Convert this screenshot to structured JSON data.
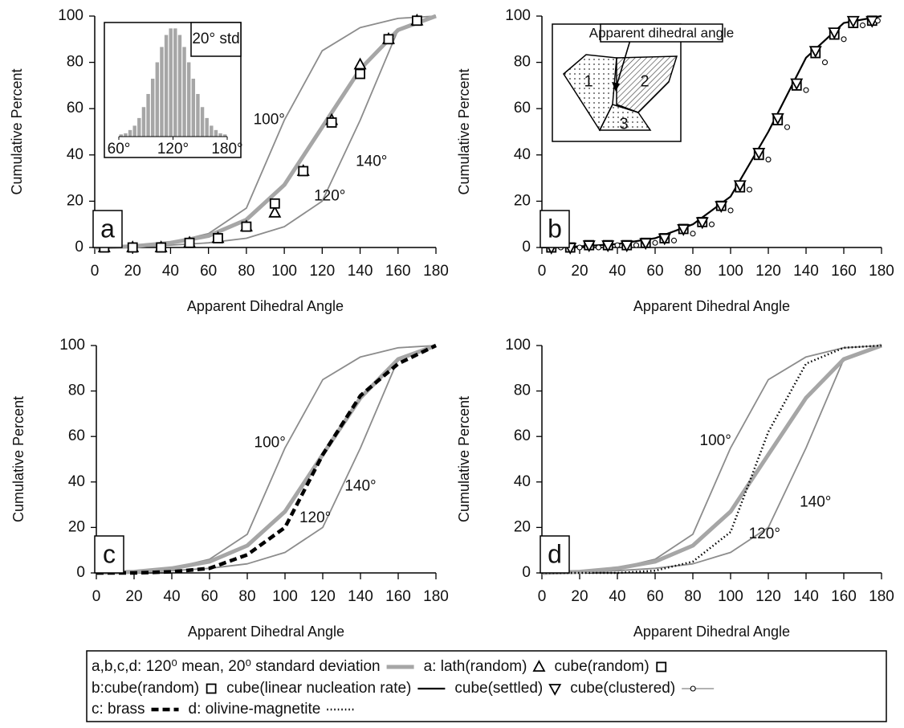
{
  "chart_data": [
    {
      "type": "line",
      "panel_label": "a",
      "xlabel": "Apparent Dihedral Angle",
      "ylabel": "Cumulative Percent",
      "xlim": [
        0,
        180
      ],
      "ylim": [
        0,
        100
      ],
      "xticks": [
        0,
        20,
        40,
        60,
        80,
        100,
        120,
        140,
        160,
        180
      ],
      "yticks": [
        0,
        20,
        40,
        60,
        80,
        100
      ],
      "series": [
        {
          "label": "100°",
          "color": "#8c8c8c",
          "line_style": "solid",
          "x": [
            0,
            20,
            40,
            60,
            80,
            100,
            120,
            140,
            160,
            180
          ],
          "values": [
            0,
            0.5,
            2,
            6,
            17,
            55,
            85,
            95,
            99,
            100
          ]
        },
        {
          "label": "140°",
          "color": "#8c8c8c",
          "line_style": "solid",
          "x": [
            0,
            20,
            40,
            60,
            80,
            100,
            120,
            140,
            160,
            180
          ],
          "values": [
            0,
            0.2,
            1,
            2,
            4,
            9,
            20,
            55,
            94,
            100
          ]
        },
        {
          "label": "120°",
          "name": "a,b,c,d: 120⁰ mean, 20⁰ standard  deviation",
          "color": "#a6a6a6",
          "line_style": "thick",
          "x": [
            0,
            20,
            40,
            60,
            80,
            100,
            120,
            140,
            160,
            180
          ],
          "values": [
            0,
            0.5,
            2,
            5,
            12,
            27,
            52,
            77,
            94,
            100
          ]
        },
        {
          "name": "a: lath(random)",
          "color": "#000000",
          "marker": "triangle",
          "x": [
            5,
            20,
            35,
            50,
            65,
            80,
            95,
            110,
            125,
            140,
            155,
            170
          ],
          "values": [
            0,
            0,
            0,
            2,
            4,
            9,
            15,
            33,
            55,
            79,
            90,
            98
          ]
        },
        {
          "name": "cube(random)",
          "color": "#000000",
          "marker": "square",
          "x": [
            5,
            20,
            35,
            50,
            65,
            80,
            95,
            110,
            125,
            140,
            155,
            170
          ],
          "values": [
            0,
            0,
            0,
            2,
            4,
            9,
            19,
            33,
            54,
            75,
            90,
            98
          ]
        }
      ],
      "inset": {
        "type": "histogram",
        "label": "20° std",
        "bins": [
          60,
          65,
          70,
          75,
          80,
          85,
          90,
          95,
          100,
          105,
          110,
          115,
          120,
          125,
          130,
          135,
          140,
          145,
          150,
          155,
          160,
          165,
          170,
          175,
          180
        ],
        "values": [
          2,
          3,
          6,
          10,
          17,
          27,
          39,
          53,
          68,
          82,
          93,
          99,
          99,
          93,
          82,
          68,
          53,
          39,
          27,
          17,
          10,
          6,
          3,
          2
        ],
        "color": "#a6a6a6",
        "xlim": [
          60,
          180
        ],
        "ylim": [
          0,
          100
        ],
        "xticks": [
          {
            "value": 60,
            "label": "60°"
          },
          {
            "value": 120,
            "label": "120°"
          },
          {
            "value": 180,
            "label": "180°"
          }
        ]
      }
    },
    {
      "type": "line",
      "panel_label": "b",
      "xlabel": "Apparent Dihedral Angle",
      "ylabel": "Cumulative Percent",
      "xlim": [
        0,
        180
      ],
      "ylim": [
        0,
        100
      ],
      "xticks": [
        0,
        20,
        40,
        60,
        80,
        100,
        120,
        140,
        160,
        180
      ],
      "yticks": [
        0,
        20,
        40,
        60,
        80,
        100
      ],
      "series": [
        {
          "name": "cube(linear nucleation rate)",
          "color": "#000000",
          "line_style": "solid",
          "x": [
            0,
            20,
            40,
            60,
            80,
            100,
            120,
            140,
            160,
            180
          ],
          "values": [
            0,
            0.5,
            1.5,
            4,
            10,
            22,
            50,
            82,
            97,
            100
          ]
        },
        {
          "name": "b:cube(random)",
          "color": "#000000",
          "marker": "square",
          "x": [
            5,
            15,
            25,
            35,
            45,
            55,
            65,
            75,
            85,
            95,
            105,
            115,
            125,
            135,
            145,
            155,
            165,
            175
          ],
          "values": [
            0,
            0,
            1,
            1,
            1,
            2,
            4,
            8,
            11,
            18,
            26,
            40,
            55,
            70,
            84,
            92,
            97,
            98
          ]
        },
        {
          "name": "cube(settled)",
          "color": "#000000",
          "marker": "triangle-down",
          "x": [
            5,
            15,
            25,
            35,
            45,
            55,
            65,
            75,
            85,
            95,
            105,
            115,
            125,
            135,
            145,
            155,
            165,
            175
          ],
          "values": [
            0,
            0,
            1,
            1,
            1,
            2,
            4,
            8,
            11,
            18,
            27,
            41,
            56,
            71,
            85,
            93,
            98,
            98
          ]
        },
        {
          "name": "cube(clustered)",
          "color": "#000000",
          "marker": "circle",
          "x": [
            10,
            20,
            30,
            40,
            50,
            60,
            70,
            80,
            90,
            100,
            110,
            120,
            130,
            140,
            150,
            160,
            170,
            178
          ],
          "values": [
            0,
            0,
            0,
            1,
            1,
            2,
            3,
            6,
            10,
            16,
            25,
            38,
            52,
            68,
            80,
            90,
            96,
            98
          ]
        }
      ],
      "inset": {
        "title": "Apparent dihedral angle",
        "labels": [
          "1",
          "2",
          "3"
        ]
      }
    },
    {
      "type": "line",
      "panel_label": "c",
      "xlabel": "Apparent Dihedral Angle",
      "ylabel": "Cumulative Percent",
      "xlim": [
        0,
        180
      ],
      "ylim": [
        0,
        100
      ],
      "xticks": [
        0,
        20,
        40,
        60,
        80,
        100,
        120,
        140,
        160,
        180
      ],
      "yticks": [
        0,
        20,
        40,
        60,
        80,
        100
      ],
      "series": [
        {
          "label": "100°",
          "color": "#8c8c8c",
          "line_style": "solid",
          "x": [
            0,
            20,
            40,
            60,
            80,
            100,
            120,
            140,
            160,
            180
          ],
          "values": [
            0,
            0.5,
            2,
            6,
            17,
            55,
            85,
            95,
            99,
            100
          ]
        },
        {
          "label": "140°",
          "color": "#8c8c8c",
          "line_style": "solid",
          "x": [
            0,
            20,
            40,
            60,
            80,
            100,
            120,
            140,
            160,
            180
          ],
          "values": [
            0,
            0.2,
            1,
            2,
            4,
            9,
            20,
            55,
            94,
            100
          ]
        },
        {
          "label": "120°",
          "color": "#a6a6a6",
          "line_style": "thick",
          "x": [
            0,
            20,
            40,
            60,
            80,
            100,
            120,
            140,
            160,
            180
          ],
          "values": [
            0,
            0.5,
            2,
            5,
            12,
            27,
            52,
            77,
            94,
            100
          ]
        },
        {
          "name": "c: brass",
          "color": "#000000",
          "line_style": "dashed",
          "x": [
            0,
            20,
            40,
            60,
            80,
            100,
            120,
            140,
            160,
            180
          ],
          "values": [
            0,
            0,
            0.5,
            2,
            8,
            20,
            52,
            78,
            92,
            100
          ]
        }
      ]
    },
    {
      "type": "line",
      "panel_label": "d",
      "xlabel": "Apparent Dihedral Angle",
      "ylabel": "Cumulative Percent",
      "xlim": [
        0,
        180
      ],
      "ylim": [
        0,
        100
      ],
      "xticks": [
        0,
        20,
        40,
        60,
        80,
        100,
        120,
        140,
        160,
        180
      ],
      "yticks": [
        0,
        20,
        40,
        60,
        80,
        100
      ],
      "series": [
        {
          "label": "100°",
          "color": "#8c8c8c",
          "line_style": "solid",
          "x": [
            0,
            20,
            40,
            60,
            80,
            100,
            120,
            140,
            160,
            180
          ],
          "values": [
            0,
            0.5,
            2,
            6,
            17,
            55,
            85,
            95,
            99,
            100
          ]
        },
        {
          "label": "140°",
          "color": "#8c8c8c",
          "line_style": "solid",
          "x": [
            0,
            20,
            40,
            60,
            80,
            100,
            120,
            140,
            160,
            180
          ],
          "values": [
            0,
            0.2,
            1,
            2,
            4,
            9,
            20,
            55,
            94,
            100
          ]
        },
        {
          "label": "120°",
          "color": "#a6a6a6",
          "line_style": "thick",
          "x": [
            0,
            20,
            40,
            60,
            80,
            100,
            120,
            140,
            160,
            180
          ],
          "values": [
            0,
            0.5,
            2,
            5,
            12,
            27,
            52,
            77,
            94,
            100
          ]
        },
        {
          "name": "d: olivine-magnetite",
          "color": "#000000",
          "line_style": "dotted",
          "x": [
            0,
            20,
            40,
            60,
            80,
            100,
            120,
            140,
            160,
            180
          ],
          "values": [
            0,
            0,
            0,
            1,
            5,
            18,
            62,
            92,
            99,
            100
          ]
        }
      ]
    }
  ]
}
